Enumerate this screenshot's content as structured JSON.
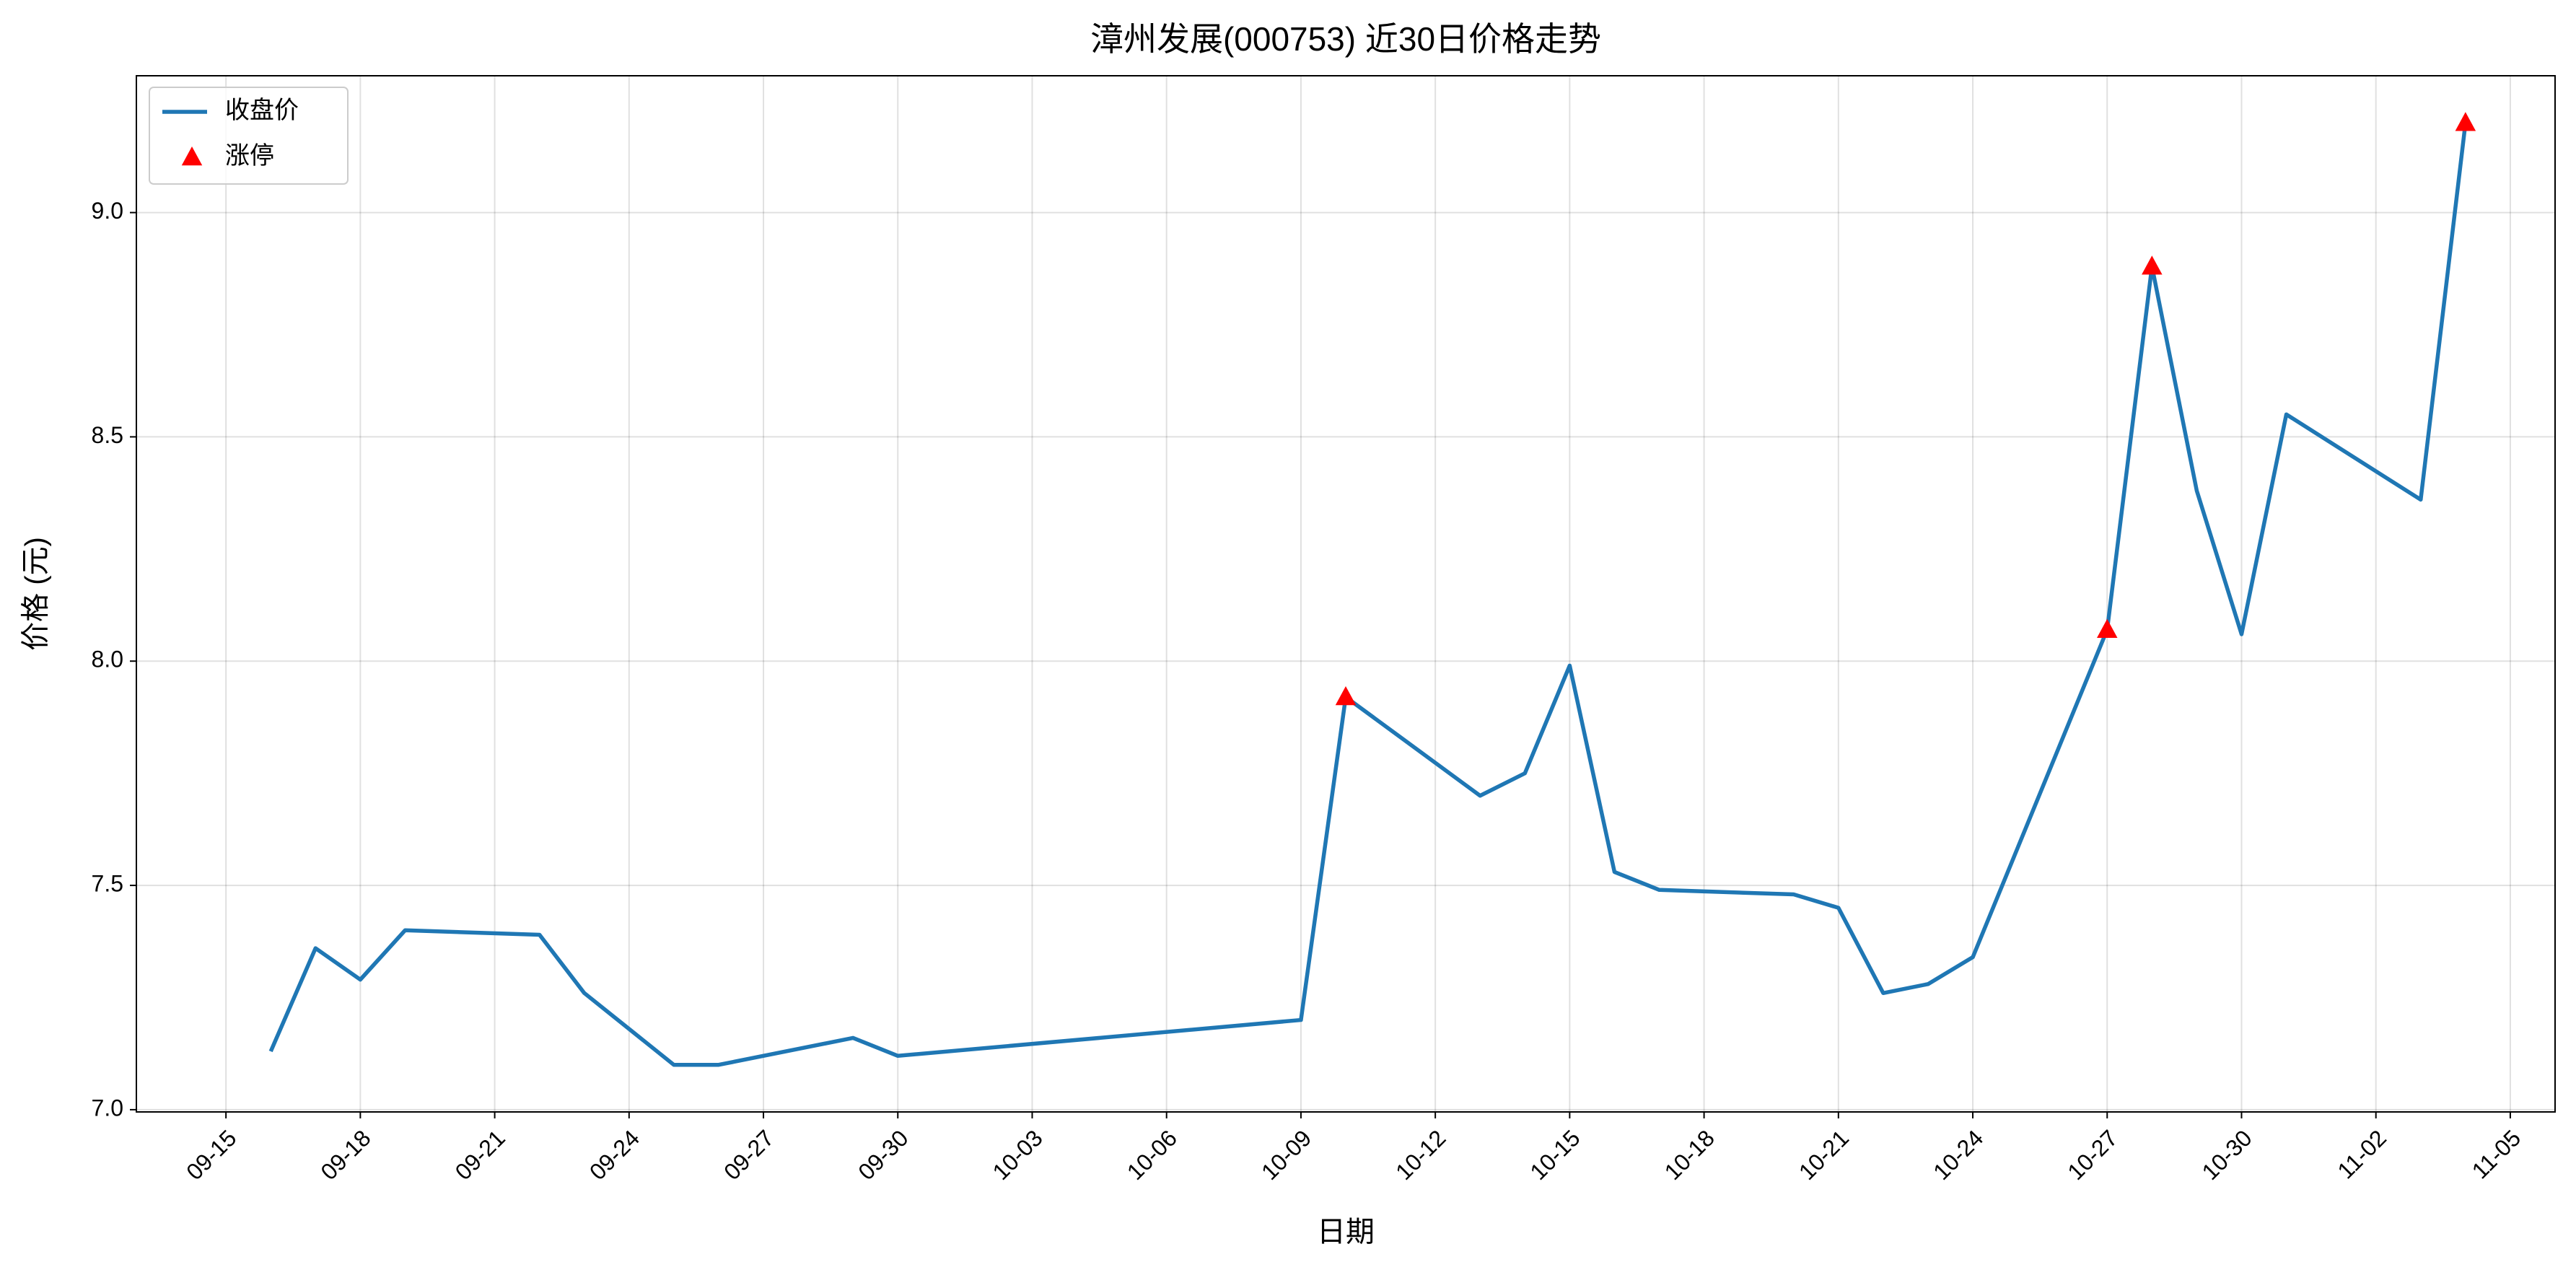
{
  "chart_data": {
    "type": "line",
    "title": "漳州发展(000753) 近30日价格走势",
    "xlabel": "日期",
    "ylabel": "价格 (元)",
    "x": [
      "09-16",
      "09-17",
      "09-18",
      "09-19",
      "09-22",
      "09-23",
      "09-25",
      "09-26",
      "09-29",
      "09-30",
      "10-09",
      "10-10",
      "10-13",
      "10-14",
      "10-15",
      "10-16",
      "10-17",
      "10-20",
      "10-21",
      "10-22",
      "10-23",
      "10-24",
      "10-27",
      "10-28",
      "10-29",
      "10-30",
      "10-31",
      "11-03",
      "11-04"
    ],
    "series": [
      {
        "name": "收盘价",
        "color": "#1f77b4",
        "type": "line",
        "values": [
          7.13,
          7.36,
          7.29,
          7.4,
          7.39,
          7.26,
          7.1,
          7.1,
          7.16,
          7.12,
          7.2,
          7.92,
          7.7,
          7.75,
          7.99,
          7.53,
          7.49,
          7.48,
          7.45,
          7.26,
          7.28,
          7.34,
          8.07,
          8.88,
          8.38,
          8.06,
          8.55,
          8.36,
          9.2
        ]
      },
      {
        "name": "涨停",
        "color": "#ff0000",
        "type": "scatter",
        "marker": "triangle",
        "x": [
          "10-10",
          "10-27",
          "10-28",
          "11-04"
        ],
        "values": [
          7.92,
          8.07,
          8.88,
          9.2
        ]
      }
    ],
    "xlim": [
      "09-13",
      "11-06"
    ],
    "xticks": [
      "09-15",
      "09-18",
      "09-21",
      "09-24",
      "09-27",
      "09-30",
      "10-03",
      "10-06",
      "10-09",
      "10-12",
      "10-15",
      "10-18",
      "10-21",
      "10-24",
      "10-27",
      "10-30",
      "11-02",
      "11-05"
    ],
    "ylim": [
      6.995,
      9.305
    ],
    "yticks": [
      {
        "value": 7,
        "label": "7.0"
      },
      7.5,
      {
        "value": 8,
        "label": "8.0"
      },
      8.5,
      {
        "value": 9,
        "label": "9.0"
      }
    ],
    "grid": true,
    "legend": "upper left"
  }
}
